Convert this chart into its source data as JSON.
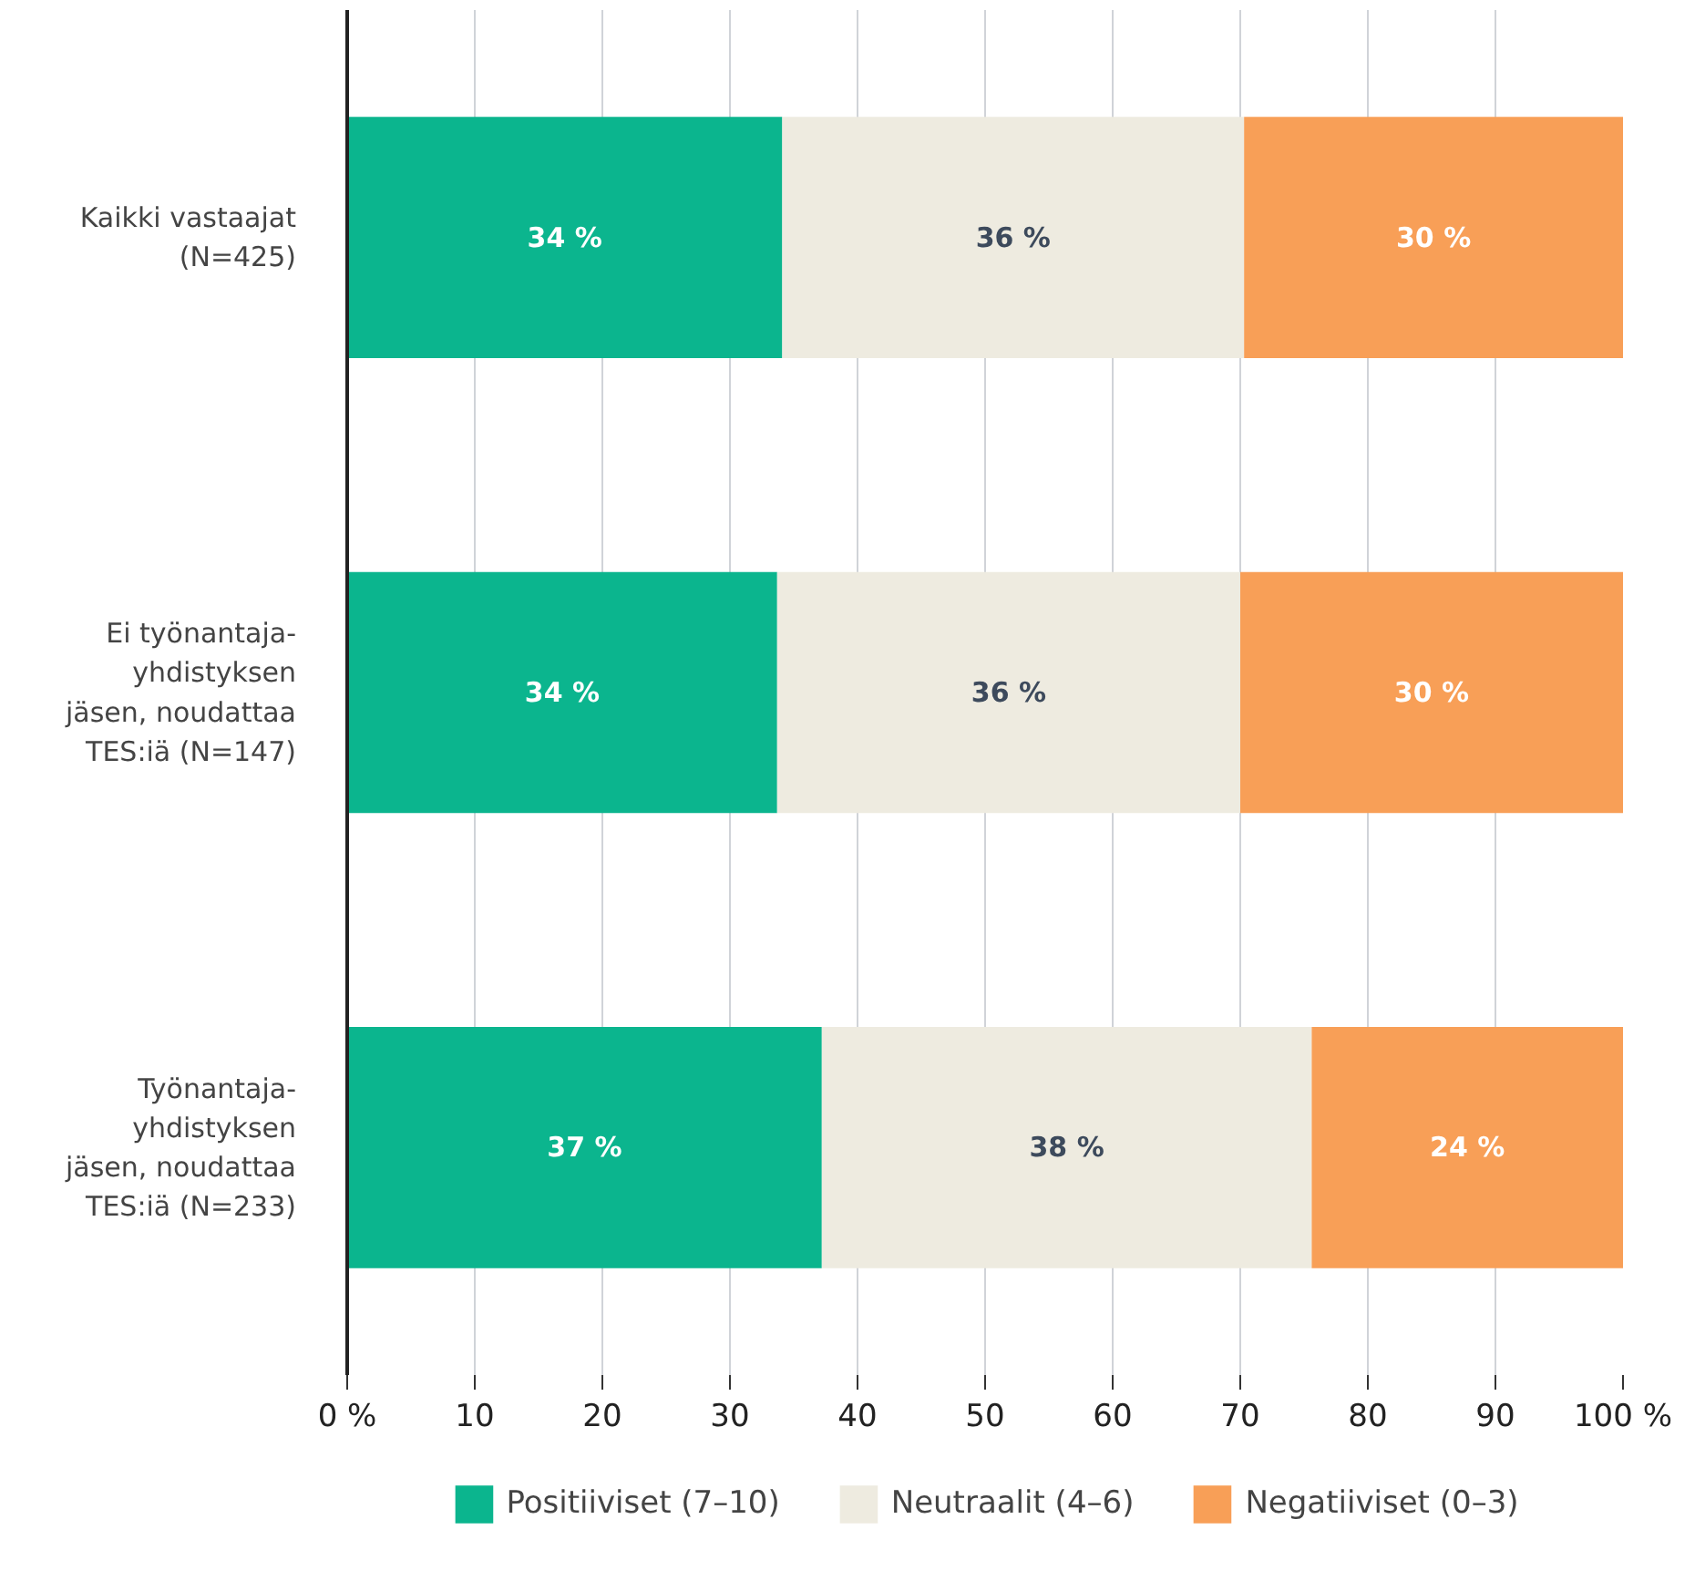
{
  "chart_data": {
    "type": "bar",
    "orientation": "horizontal",
    "stacked": true,
    "categories": [
      "Kaikki vastaajat\n(N=425)",
      "Ei työnantaja-\nyhdistyksen\njäsen, noudattaa\nTES:iä (N=147)",
      "Työnantaja-\nyhdistyksen\njäsen, noudattaa\nTES:iä (N=233)"
    ],
    "series": [
      {
        "name": "Positiiviset (7–10)",
        "color": "#0bb58e",
        "values": [
          34.1,
          33.7,
          37.2
        ],
        "value_labels": [
          "34 %",
          "34 %",
          "37 %"
        ]
      },
      {
        "name": "Neutraalit (4–6)",
        "color": "#eeebe0",
        "values": [
          36.2,
          36.3,
          38.4
        ],
        "value_labels": [
          "36 %",
          "36 %",
          "38 %"
        ]
      },
      {
        "name": "Negatiiviset (0–3)",
        "color": "#f89f57",
        "values": [
          29.7,
          30.0,
          24.4
        ],
        "value_labels": [
          "30 %",
          "30 %",
          "24 %"
        ]
      }
    ],
    "xlim": [
      0,
      100
    ],
    "xticks": [
      {
        "value": 0,
        "label": "0 %"
      },
      10,
      20,
      30,
      40,
      50,
      60,
      70,
      80,
      90,
      {
        "value": 100,
        "label": "100 %"
      }
    ],
    "grid": "x",
    "legend": "bottom"
  }
}
